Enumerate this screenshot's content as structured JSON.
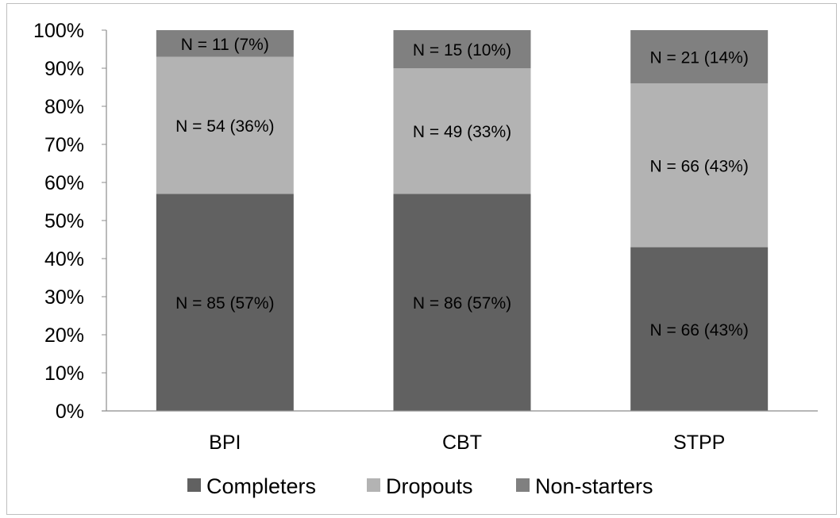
{
  "chart_data": {
    "type": "bar",
    "stacked": true,
    "percent": true,
    "categories": [
      "BPI",
      "CBT",
      "STPP"
    ],
    "series": [
      {
        "name": "Completers",
        "color": "#616161",
        "values": [
          57,
          57,
          43
        ],
        "labels": [
          "N = 85 (57%)",
          "N = 86 (57%)",
          "N = 66 (43%)"
        ]
      },
      {
        "name": "Dropouts",
        "color": "#b3b3b3",
        "values": [
          36,
          33,
          43
        ],
        "labels": [
          "N = 54 (36%)",
          "N = 49 (33%)",
          "N = 66 (43%)"
        ]
      },
      {
        "name": "Non-starters",
        "color": "#808080",
        "values": [
          7,
          10,
          14
        ],
        "labels": [
          "N = 11 (7%)",
          "N = 15 (10%)",
          "N = 21 (14%)"
        ]
      }
    ],
    "ylim": [
      0,
      100
    ],
    "y_ticks": [
      "0%",
      "10%",
      "20%",
      "30%",
      "40%",
      "50%",
      "60%",
      "70%",
      "80%",
      "90%",
      "100%"
    ],
    "legend_position": "bottom",
    "grid": false
  }
}
